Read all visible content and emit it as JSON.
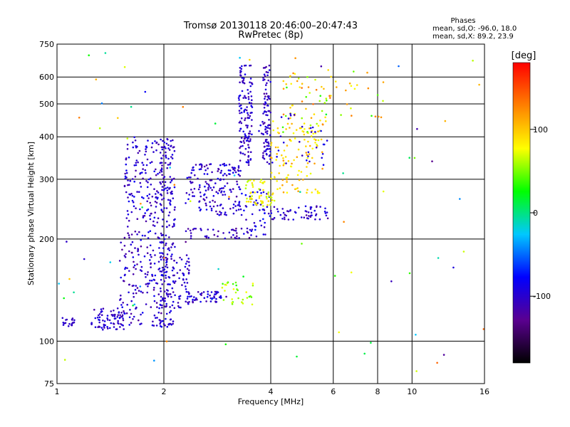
{
  "chart_data": {
    "type": "scatter",
    "title": "Tromsø 20130118 20:46:00–20:47:43",
    "subtitle": "RwPretec (8p)",
    "xlabel": "Frequency [MHz]",
    "ylabel": "Stationary phase Virtual Height [km]",
    "x_scale": "log",
    "y_scale": "log",
    "xlim": [
      1,
      16
    ],
    "ylim": [
      75,
      750
    ],
    "x_ticks": [
      "1",
      "2",
      "4",
      "6",
      "8",
      "10",
      "16"
    ],
    "y_ticks": [
      "75",
      "100",
      "200",
      "300",
      "400",
      "500",
      "600",
      "750"
    ],
    "grid": true,
    "stats_header": "Phases",
    "stats": [
      "mean, sd,O: -96.0, 18.0",
      "mean, sd,X:  89.2, 23.9"
    ],
    "colorbar": {
      "label": "[deg]",
      "ticks": [
        "100",
        "0",
        "-100"
      ],
      "range": [
        -180,
        180
      ],
      "colors": [
        "#000000",
        "#5a0090",
        "#0000ff",
        "#00c8ff",
        "#00ff00",
        "#ffff00",
        "#ff8000",
        "#ff0000"
      ]
    },
    "clusters": [
      {
        "x": [
          1.02,
          1.12
        ],
        "y": [
          110,
          118
        ],
        "c": [
          -110,
          -95
        ],
        "n": 20
      },
      {
        "x": [
          1.25,
          1.55
        ],
        "y": [
          108,
          125
        ],
        "c": [
          -120,
          -85
        ],
        "n": 70
      },
      {
        "x": [
          1.5,
          2.0
        ],
        "y": [
          110,
          200
        ],
        "c": [
          -125,
          -80
        ],
        "n": 160
      },
      {
        "x": [
          1.55,
          2.0
        ],
        "y": [
          200,
          400
        ],
        "c": [
          -120,
          -80
        ],
        "n": 170
      },
      {
        "x": [
          1.95,
          2.15
        ],
        "y": [
          110,
          400
        ],
        "c": [
          -115,
          -85
        ],
        "n": 190
      },
      {
        "x": [
          2.0,
          2.4
        ],
        "y": [
          125,
          180
        ],
        "c": [
          -115,
          -85
        ],
        "n": 60
      },
      {
        "x": [
          2.3,
          3.0
        ],
        "y": [
          130,
          140
        ],
        "c": [
          -120,
          -80
        ],
        "n": 50
      },
      {
        "x": [
          2.9,
          3.6
        ],
        "y": [
          128,
          150
        ],
        "c": [
          30,
          80
        ],
        "n": 30
      },
      {
        "x": [
          2.3,
          3.5
        ],
        "y": [
          200,
          215
        ],
        "c": [
          -125,
          -95
        ],
        "n": 40
      },
      {
        "x": [
          2.3,
          3.3
        ],
        "y": [
          235,
          335
        ],
        "c": [
          -120,
          -80
        ],
        "n": 170
      },
      {
        "x": [
          3.3,
          4.0
        ],
        "y": [
          200,
          280
        ],
        "c": [
          -115,
          -70
        ],
        "n": 50
      },
      {
        "x": [
          3.4,
          4.1
        ],
        "y": [
          250,
          300
        ],
        "c": [
          60,
          95
        ],
        "n": 55
      },
      {
        "x": [
          3.25,
          3.55
        ],
        "y": [
          330,
          650
        ],
        "c": [
          -120,
          -85
        ],
        "n": 130
      },
      {
        "x": [
          3.8,
          4.0
        ],
        "y": [
          330,
          650
        ],
        "c": [
          -120,
          -85
        ],
        "n": 90
      },
      {
        "x": [
          4.0,
          5.8
        ],
        "y": [
          228,
          250
        ],
        "c": [
          -120,
          -85
        ],
        "n": 55
      },
      {
        "x": [
          4.0,
          5.6
        ],
        "y": [
          270,
          450
        ],
        "c": [
          70,
          120
        ],
        "n": 110
      },
      {
        "x": [
          4.3,
          5.8
        ],
        "y": [
          400,
          620
        ],
        "c": [
          30,
          140
        ],
        "n": 60
      },
      {
        "x": [
          3.3,
          5.8
        ],
        "y": [
          330,
          480
        ],
        "c": [
          -110,
          -80
        ],
        "n": 40
      },
      {
        "x": [
          5.8,
          8.5
        ],
        "y": [
          450,
          640
        ],
        "c": [
          40,
          140
        ],
        "n": 25
      },
      {
        "x": [
          1.0,
          16.0
        ],
        "y": [
          80,
          740
        ],
        "c": [
          -130,
          140
        ],
        "n": 80
      }
    ]
  }
}
